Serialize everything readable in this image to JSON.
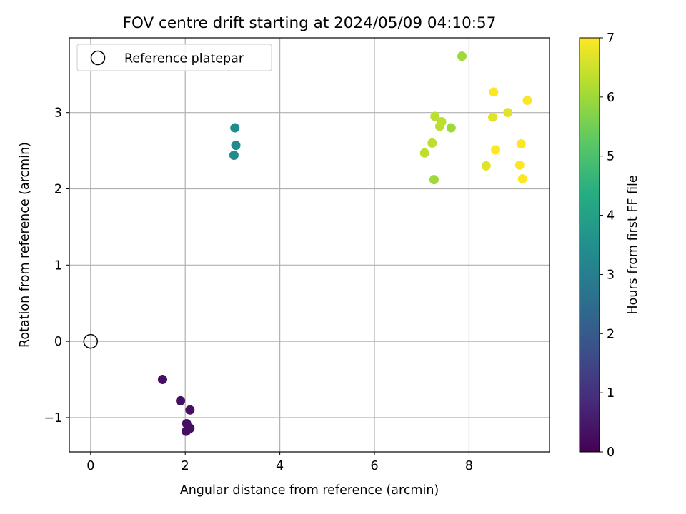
{
  "chart_data": {
    "type": "scatter",
    "title": "FOV centre drift starting at 2024/05/09 04:10:57",
    "xlabel": "Angular distance from reference (arcmin)",
    "ylabel": "Rotation from reference (arcmin)",
    "xlim": [
      -0.45,
      9.7
    ],
    "ylim": [
      -1.45,
      3.98
    ],
    "xticks": [
      "0",
      "2",
      "4",
      "6",
      "8"
    ],
    "yticks": [
      "−1",
      "0",
      "1",
      "2",
      "3"
    ],
    "grid": true,
    "legend_position": "top-left",
    "reference": {
      "label": "Reference platepar",
      "x": 0,
      "y": 0
    },
    "colorbar": {
      "label": "Hours from first FF file",
      "min": 0,
      "max": 7,
      "ticks": [
        "0",
        "1",
        "2",
        "3",
        "4",
        "5",
        "6",
        "7"
      ],
      "colormap": [
        "#440154",
        "#472c7a",
        "#3b518b",
        "#2c718e",
        "#21908d",
        "#27ad81",
        "#5cc863",
        "#aadc32",
        "#fde725"
      ]
    },
    "points": [
      {
        "x": 1.52,
        "y": -0.5,
        "hours": 0.3
      },
      {
        "x": 1.9,
        "y": -0.78,
        "hours": 0.3
      },
      {
        "x": 2.1,
        "y": -0.9,
        "hours": 0.3
      },
      {
        "x": 2.03,
        "y": -1.08,
        "hours": 0.3
      },
      {
        "x": 2.1,
        "y": -1.14,
        "hours": 0.3
      },
      {
        "x": 2.02,
        "y": -1.18,
        "hours": 0.3
      },
      {
        "x": 3.05,
        "y": 2.8,
        "hours": 3.4
      },
      {
        "x": 3.07,
        "y": 2.57,
        "hours": 3.4
      },
      {
        "x": 3.03,
        "y": 2.44,
        "hours": 3.4
      },
      {
        "x": 7.85,
        "y": 3.74,
        "hours": 6.0
      },
      {
        "x": 7.28,
        "y": 2.95,
        "hours": 6.3
      },
      {
        "x": 7.42,
        "y": 2.88,
        "hours": 6.3
      },
      {
        "x": 7.38,
        "y": 2.82,
        "hours": 6.3
      },
      {
        "x": 7.62,
        "y": 2.8,
        "hours": 6.0
      },
      {
        "x": 7.22,
        "y": 2.6,
        "hours": 6.3
      },
      {
        "x": 7.06,
        "y": 2.47,
        "hours": 6.3
      },
      {
        "x": 7.26,
        "y": 2.12,
        "hours": 6.0
      },
      {
        "x": 8.52,
        "y": 3.27,
        "hours": 7.0
      },
      {
        "x": 9.23,
        "y": 3.16,
        "hours": 7.0
      },
      {
        "x": 8.82,
        "y": 3.0,
        "hours": 6.7
      },
      {
        "x": 8.5,
        "y": 2.94,
        "hours": 6.7
      },
      {
        "x": 8.56,
        "y": 2.51,
        "hours": 7.0
      },
      {
        "x": 9.1,
        "y": 2.59,
        "hours": 7.0
      },
      {
        "x": 8.36,
        "y": 2.3,
        "hours": 6.7
      },
      {
        "x": 9.07,
        "y": 2.31,
        "hours": 7.0
      },
      {
        "x": 9.13,
        "y": 2.13,
        "hours": 7.0
      }
    ]
  }
}
